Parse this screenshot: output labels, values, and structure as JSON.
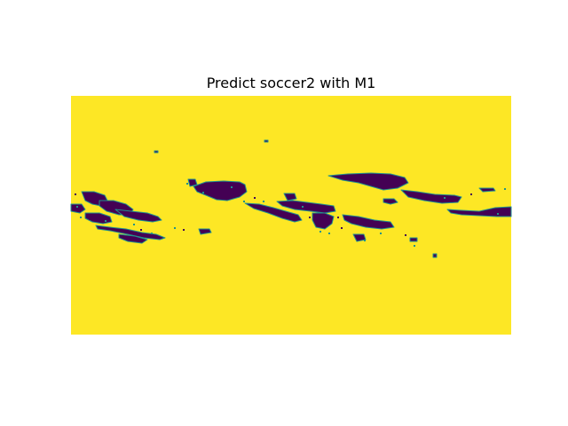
{
  "title": "Predict soccer2 with M1",
  "chart_data": {
    "type": "heatmap",
    "title": "Predict soccer2 with M1",
    "colormap": "viridis",
    "axes_visible": false,
    "values": [
      0,
      1
    ],
    "colors": {
      "0": "#440154",
      "1": "#fde725"
    },
    "background_value": 1,
    "edge_color": "#21918c"
  }
}
